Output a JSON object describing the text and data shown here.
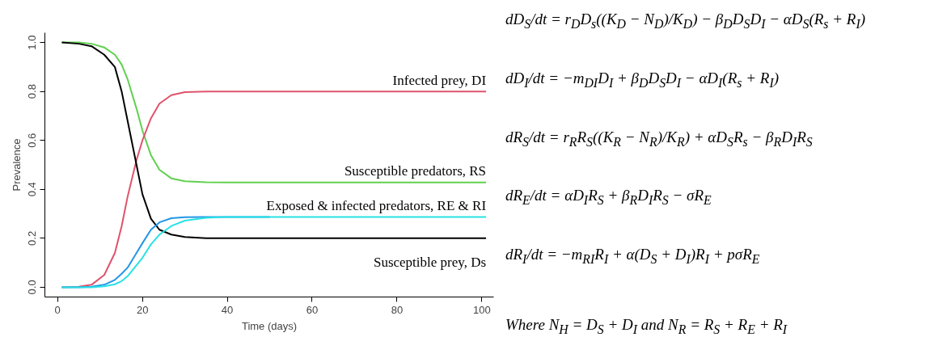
{
  "chart_data": {
    "type": "line",
    "xlabel": "Time (days)",
    "ylabel": "Prevalence",
    "xlim": [
      -3,
      102.8
    ],
    "ylim": [
      -0.04,
      1.04
    ],
    "xticks": [
      0,
      20,
      40,
      60,
      80,
      100
    ],
    "yticks": [
      {
        "value": 0,
        "label": "0.0"
      },
      0.2,
      0.4,
      0.6,
      0.8,
      {
        "value": 1,
        "label": "1.0"
      }
    ],
    "grid": false,
    "line_style": "solid",
    "marker": "none",
    "x": [
      1,
      5,
      8,
      11,
      13.5,
      15.1,
      16.5,
      18.6,
      20,
      22,
      24,
      26.8,
      30,
      35,
      40,
      50,
      60,
      70,
      80,
      90,
      101
    ],
    "series": [
      {
        "name": "Susceptible predators, RS",
        "color": "#61d04f",
        "values": [
          1,
          1,
          0.995,
          0.98,
          0.95,
          0.91,
          0.85,
          0.73,
          0.64,
          0.54,
          0.48,
          0.445,
          0.433,
          0.429,
          0.428,
          0.428,
          0.428,
          0.428,
          0.428,
          0.428,
          0.428
        ]
      },
      {
        "name": "Infected prey, DI",
        "color": "#df536b",
        "values": [
          0,
          0.002,
          0.01,
          0.05,
          0.14,
          0.25,
          0.37,
          0.52,
          0.6,
          0.69,
          0.75,
          0.785,
          0.797,
          0.8,
          0.8,
          0.8,
          0.8,
          0.8,
          0.8,
          0.8,
          0.8
        ]
      },
      {
        "name": "Susceptible prey, Ds",
        "color": "#000000",
        "values": [
          1,
          0.995,
          0.985,
          0.95,
          0.9,
          0.8,
          0.68,
          0.5,
          0.38,
          0.28,
          0.235,
          0.215,
          0.205,
          0.2,
          0.2,
          0.2,
          0.2,
          0.2,
          0.2,
          0.2,
          0.2
        ]
      },
      {
        "color": "#2297e6",
        "values": [
          0,
          0,
          0.002,
          0.01,
          0.03,
          0.055,
          0.08,
          0.14,
          0.18,
          0.235,
          0.265,
          0.282,
          0.286,
          0.287,
          0.287,
          0.287,
          null,
          null,
          null,
          null,
          null
        ]
      },
      {
        "name": "Exposed & infected predators, RE & RI",
        "color": "#28e2e5",
        "values": [
          0,
          0,
          0,
          0.004,
          0.012,
          0.025,
          0.045,
          0.09,
          0.12,
          0.175,
          0.215,
          0.25,
          0.272,
          0.284,
          0.287,
          0.287,
          0.287,
          0.287,
          0.287,
          0.287,
          0.287
        ]
      }
    ],
    "annotations": [
      "dD$_{S}$/dt = r$_{D}$D$_{s}$((K$_{D}$ − N$_{D}$)/K$_{D}$) − β$_{D}$D$_{S}$D$_{I}$ − αD$_{S}$(R$_{s}$ + R$_{I}$)",
      "dD$_{I}$/dt = −m$_{DI}$D$_{I}$ + β$_{D}$D$_{S}$D$_{I}$ − αD$_{I}$(R$_{s}$ + R$_{I}$)",
      "dR$_{S}$/dt = r$_{R}$R$_{S}$((K$_{R}$ − N$_{R}$)/K$_{R}$) + αD$_{S}$R$_{s}$ − β$_{R}$D$_{I}$R$_{S}$",
      "dR$_{E}$/dt = αD$_{I}$R$_{S}$ + β$_{R}$D$_{I}$R$_{S}$ − σR$_{E}$",
      "dR$_{I}$/dt = −m$_{RI}$R$_{I}$ + α(D$_{S}$ + D$_{I}$)R$_{I}$ + pσR$_{E}$",
      "Where N$_{H}$ = D$_{S}$ + D$_{I}$ and N$_{R}$ = R$_{S}$ + R$_{E}$ + R$_{I}$"
    ]
  }
}
